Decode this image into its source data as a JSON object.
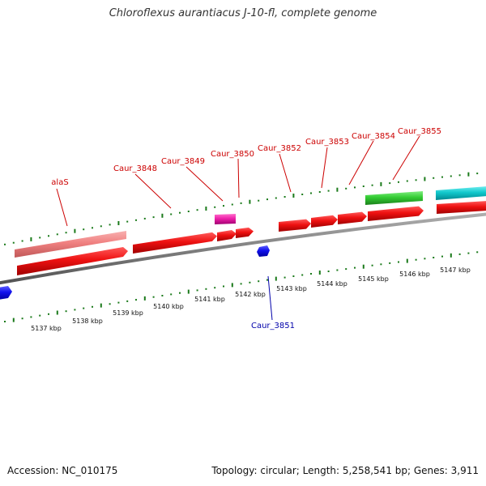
{
  "title": "Chloroflexus aurantiacus J-10-fl, complete genome",
  "footer": {
    "accession": "Accession: NC_010175",
    "summary": "Topology: circular; Length: 5,258,541 bp; Genes: 3,911"
  },
  "colors": {
    "backbone": "#808080",
    "forward_label": "#cc0000",
    "reverse_label": "#0000aa",
    "tick": "#1a7a1a",
    "cds": "#ee1111",
    "light_red": "#f08080",
    "magenta": "#ee22aa",
    "green": "#33cc33",
    "cyan": "#11c8cc",
    "blue": "#1111ee"
  },
  "gene_labels": [
    {
      "name": "alaS",
      "strand": "forward"
    },
    {
      "name": "Caur_3848",
      "strand": "forward"
    },
    {
      "name": "Caur_3849",
      "strand": "forward"
    },
    {
      "name": "Caur_3850",
      "strand": "forward"
    },
    {
      "name": "Caur_3852",
      "strand": "forward"
    },
    {
      "name": "Caur_3853",
      "strand": "forward"
    },
    {
      "name": "Caur_3854",
      "strand": "forward"
    },
    {
      "name": "Caur_3855",
      "strand": "forward"
    },
    {
      "name": "Caur_3851",
      "strand": "reverse"
    }
  ],
  "scale_labels": [
    "5137 kbp",
    "5138 kbp",
    "5139 kbp",
    "5140 kbp",
    "5141 kbp",
    "5142 kbp",
    "5143 kbp",
    "5144 kbp",
    "5145 kbp",
    "5146 kbp",
    "5147 kbp"
  ]
}
